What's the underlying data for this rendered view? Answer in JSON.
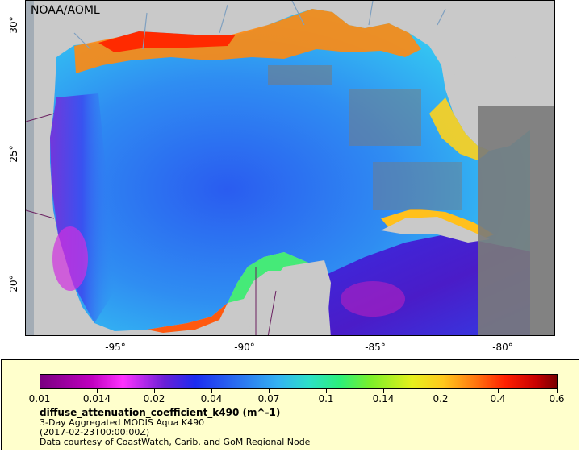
{
  "map": {
    "credit": "NOAA/AOML",
    "lat_ticks": [
      "30°",
      "25°",
      "20°"
    ],
    "lon_ticks": [
      "-95°",
      "-90°",
      "-85°",
      "-80°"
    ]
  },
  "legend": {
    "colorbar_ticks": [
      "0.01",
      "0.014",
      "0.02",
      "0.04",
      "0.07",
      "0.1",
      "0.14",
      "0.2",
      "0.4",
      "0.6"
    ],
    "variable": "diffuse_attenuation_coefficient_k490 (m^-1)",
    "line1": "3-Day Aggregated MODIS Aqua K490",
    "line2": "(2017-02-23T00:00:00Z)",
    "line3": "Data courtesy of CoastWatch, Carib. and GoM Regional Node"
  }
}
